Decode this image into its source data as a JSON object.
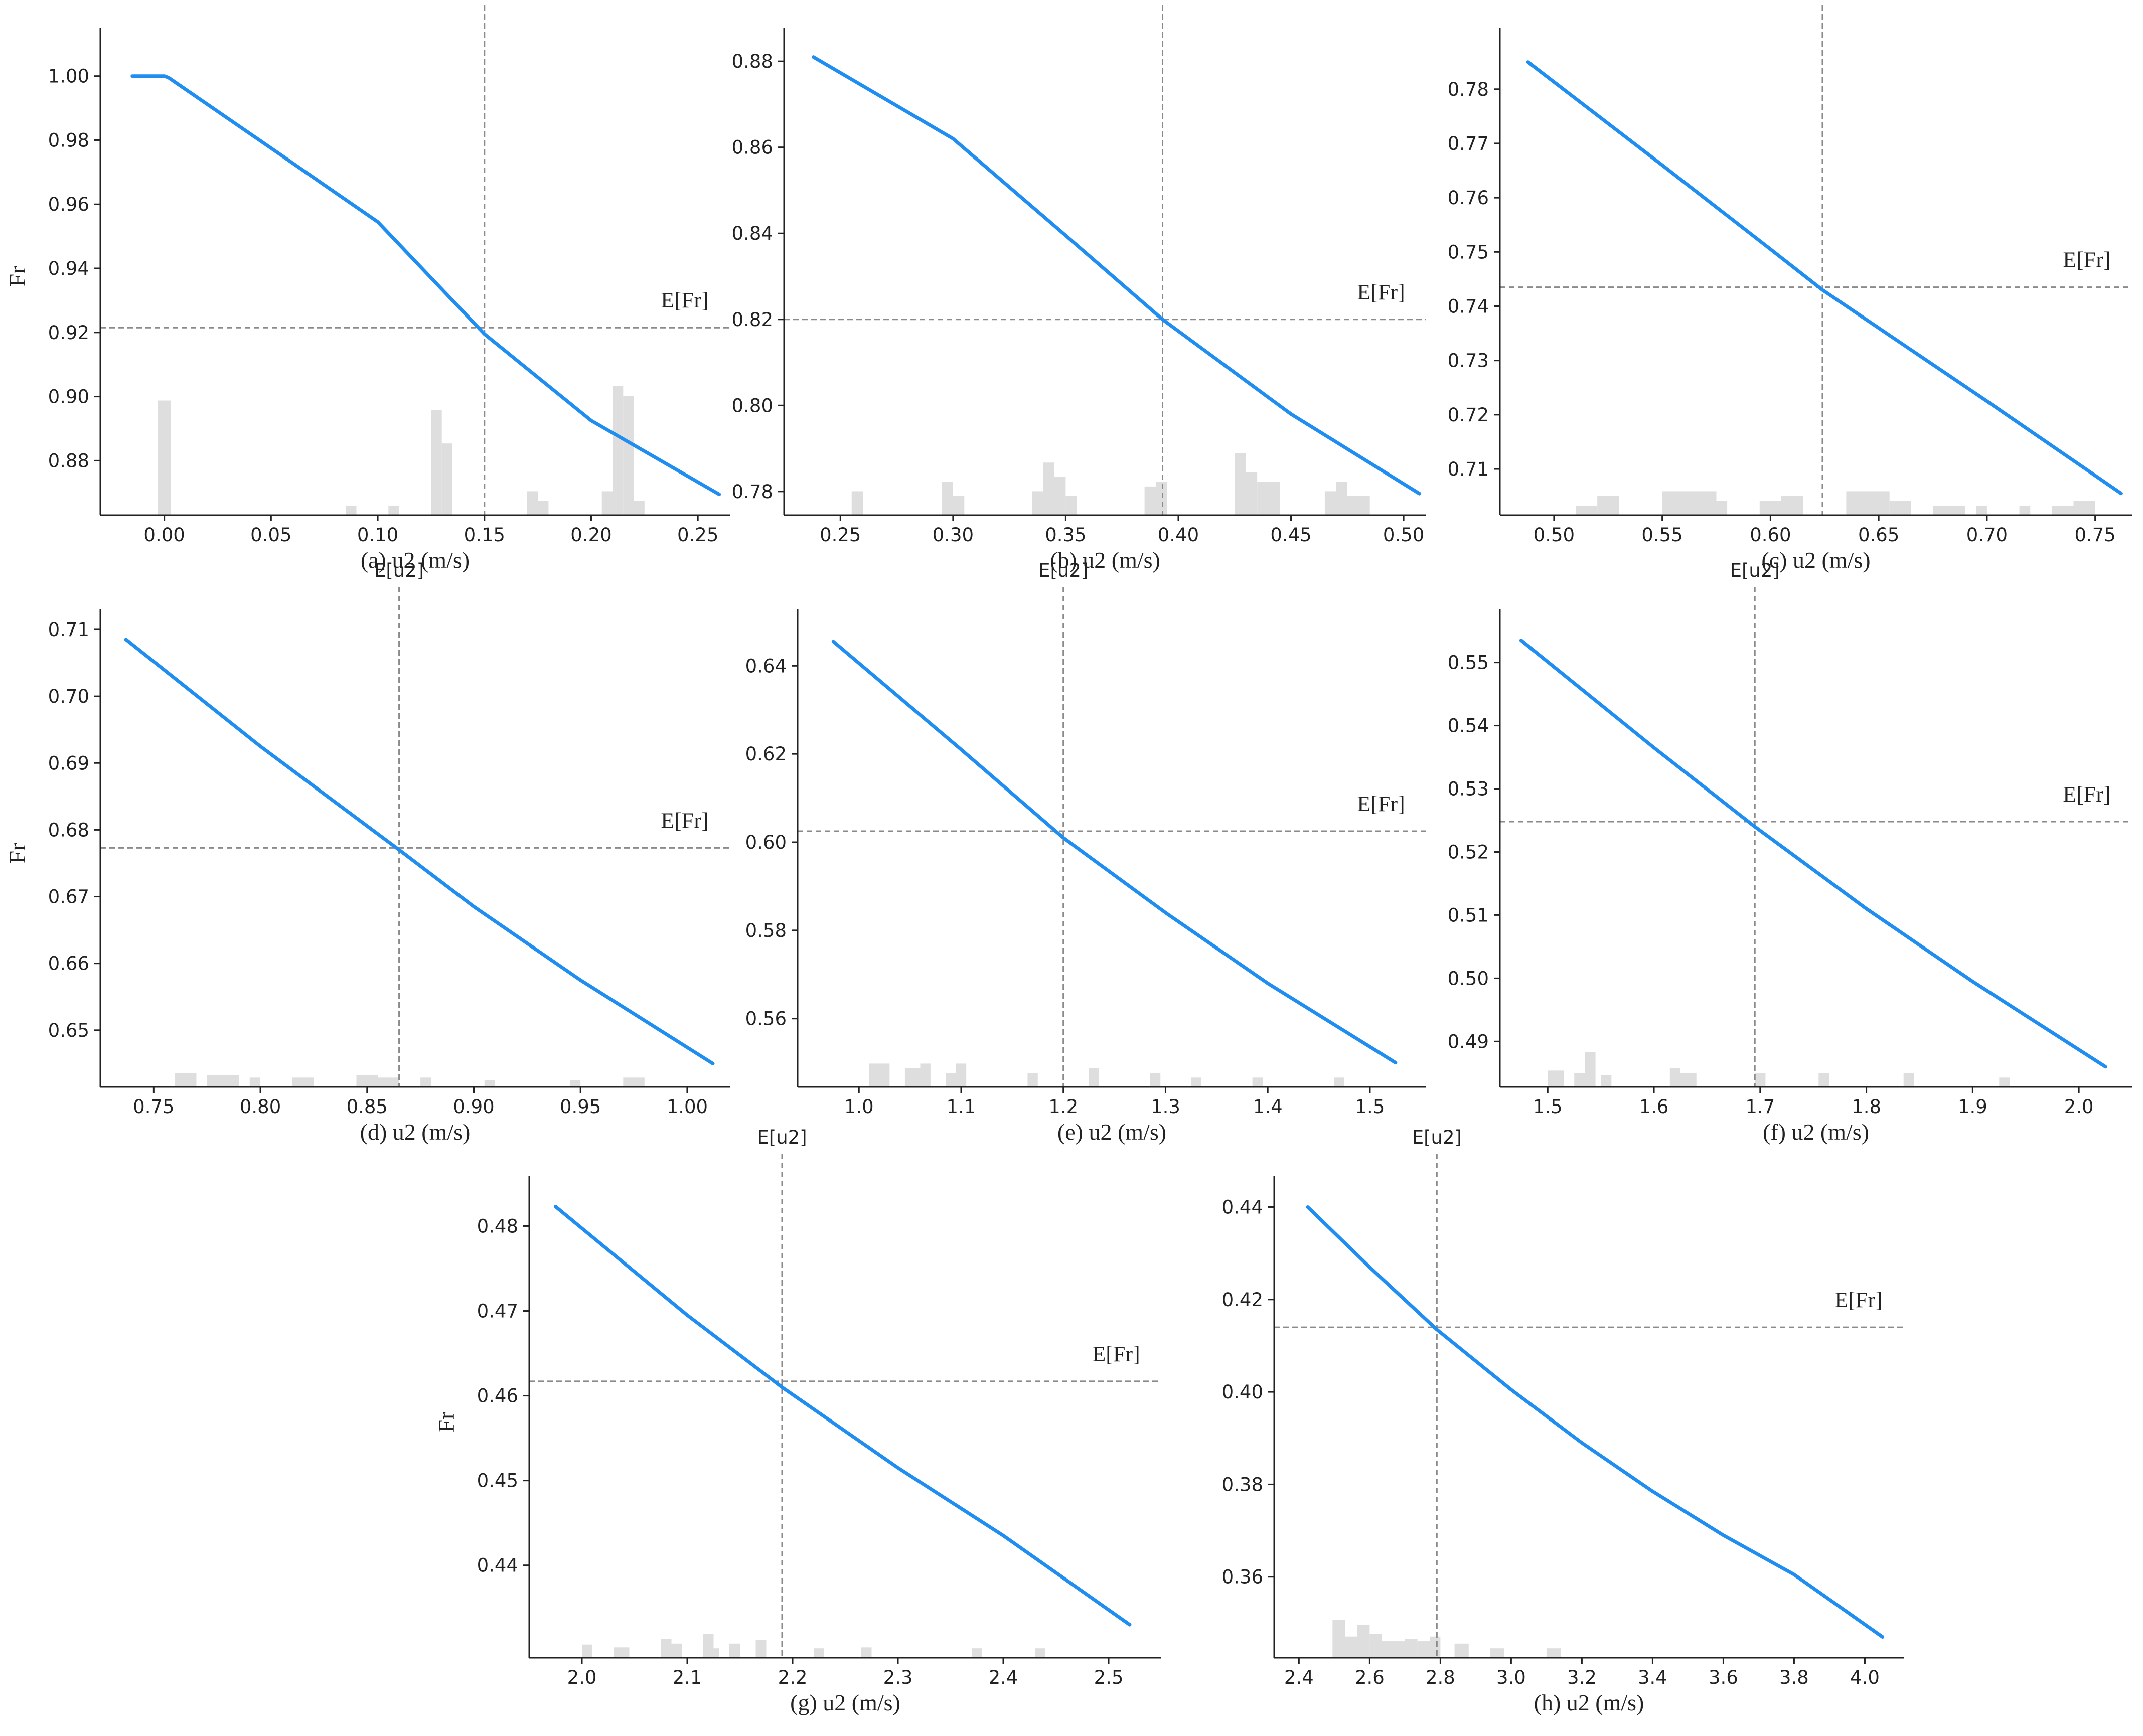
{
  "figure": {
    "background": "#ffffff",
    "curve_color": "#1f8ef0",
    "hist_color": "#dedede",
    "ref_color": "#8a8a8a"
  },
  "chart_data": [
    {
      "id": "a",
      "type": "line",
      "xlabel": "(a) u2 (m/s)",
      "ylabel": "Fr",
      "mean_x_label": "E[u2]",
      "mean_y_label": "E[Fr]",
      "xlim": [
        -0.03,
        0.265
      ],
      "ylim": [
        0.863,
        1.012
      ],
      "xticks": [
        0.0,
        0.05,
        0.1,
        0.15,
        0.2,
        0.25
      ],
      "xtick_labels": [
        "0.00",
        "0.05",
        "0.10",
        "0.15",
        "0.20",
        "0.25"
      ],
      "yticks": [
        0.88,
        0.9,
        0.92,
        0.94,
        0.96,
        0.98,
        1.0
      ],
      "ytick_labels": [
        "0.88",
        "0.90",
        "0.92",
        "0.94",
        "0.96",
        "0.98",
        "1.00"
      ],
      "mean_x": 0.15,
      "mean_y": 0.9215,
      "curve": {
        "x": [
          -0.015,
          0.0,
          0.002,
          0.05,
          0.1,
          0.15,
          0.2,
          0.26
        ],
        "y": [
          1.0,
          1.0,
          0.9995,
          0.9775,
          0.9545,
          0.9195,
          0.8925,
          0.8695
        ]
      },
      "histogram": {
        "bins": [
          [
            -0.003,
            0.003,
            0.24
          ],
          [
            0.125,
            0.13,
            0.22
          ],
          [
            0.13,
            0.135,
            0.15
          ],
          [
            0.085,
            0.09,
            0.02
          ],
          [
            0.105,
            0.11,
            0.02
          ],
          [
            0.17,
            0.175,
            0.05
          ],
          [
            0.175,
            0.18,
            0.03
          ],
          [
            0.205,
            0.21,
            0.05
          ],
          [
            0.21,
            0.215,
            0.27
          ],
          [
            0.215,
            0.22,
            0.25
          ],
          [
            0.22,
            0.225,
            0.03
          ]
        ]
      }
    },
    {
      "id": "b",
      "type": "line",
      "xlabel": "(b) u2 (m/s)",
      "ylabel": "",
      "mean_x_label": "E[u2]",
      "mean_y_label": "E[Fr]",
      "xlim": [
        0.225,
        0.51
      ],
      "ylim": [
        0.7745,
        0.8855
      ],
      "xticks": [
        0.25,
        0.3,
        0.35,
        0.4,
        0.45,
        0.5
      ],
      "xtick_labels": [
        "0.25",
        "0.30",
        "0.35",
        "0.40",
        "0.45",
        "0.50"
      ],
      "yticks": [
        0.78,
        0.8,
        0.82,
        0.84,
        0.86,
        0.88
      ],
      "ytick_labels": [
        "0.78",
        "0.80",
        "0.82",
        "0.84",
        "0.86",
        "0.88"
      ],
      "mean_x": 0.393,
      "mean_y": 0.82,
      "curve": {
        "x": [
          0.238,
          0.3,
          0.35,
          0.393,
          0.45,
          0.507
        ],
        "y": [
          0.881,
          0.862,
          0.8395,
          0.82,
          0.798,
          0.7795
        ]
      },
      "histogram": {
        "bins": [
          [
            0.255,
            0.26,
            0.05
          ],
          [
            0.295,
            0.3,
            0.07
          ],
          [
            0.3,
            0.305,
            0.04
          ],
          [
            0.335,
            0.34,
            0.05
          ],
          [
            0.34,
            0.345,
            0.11
          ],
          [
            0.345,
            0.35,
            0.08
          ],
          [
            0.35,
            0.355,
            0.04
          ],
          [
            0.385,
            0.39,
            0.06
          ],
          [
            0.39,
            0.395,
            0.07
          ],
          [
            0.425,
            0.43,
            0.13
          ],
          [
            0.43,
            0.435,
            0.09
          ],
          [
            0.435,
            0.445,
            0.07
          ],
          [
            0.465,
            0.47,
            0.05
          ],
          [
            0.47,
            0.475,
            0.07
          ],
          [
            0.475,
            0.485,
            0.04
          ]
        ]
      }
    },
    {
      "id": "c",
      "type": "line",
      "xlabel": "(c) u2 (m/s)",
      "ylabel": "",
      "mean_x_label": "E[u2]",
      "mean_y_label": "E[Fr]",
      "xlim": [
        0.475,
        0.767
      ],
      "ylim": [
        0.7015,
        0.7895
      ],
      "xticks": [
        0.5,
        0.55,
        0.6,
        0.65,
        0.7,
        0.75
      ],
      "xtick_labels": [
        "0.50",
        "0.55",
        "0.60",
        "0.65",
        "0.70",
        "0.75"
      ],
      "yticks": [
        0.71,
        0.72,
        0.73,
        0.74,
        0.75,
        0.76,
        0.77,
        0.78
      ],
      "ytick_labels": [
        "0.71",
        "0.72",
        "0.73",
        "0.74",
        "0.75",
        "0.76",
        "0.77",
        "0.78"
      ],
      "mean_x": 0.624,
      "mean_y": 0.7435,
      "curve": {
        "x": [
          0.488,
          0.55,
          0.6,
          0.624,
          0.7,
          0.762
        ],
        "y": [
          0.785,
          0.766,
          0.7505,
          0.743,
          0.7225,
          0.7055
        ]
      },
      "histogram": {
        "bins": [
          [
            0.51,
            0.52,
            0.02
          ],
          [
            0.52,
            0.53,
            0.04
          ],
          [
            0.55,
            0.575,
            0.05
          ],
          [
            0.575,
            0.58,
            0.03
          ],
          [
            0.595,
            0.605,
            0.03
          ],
          [
            0.605,
            0.615,
            0.04
          ],
          [
            0.635,
            0.645,
            0.05
          ],
          [
            0.645,
            0.655,
            0.05
          ],
          [
            0.655,
            0.665,
            0.03
          ],
          [
            0.675,
            0.69,
            0.02
          ],
          [
            0.695,
            0.7,
            0.02
          ],
          [
            0.715,
            0.72,
            0.02
          ],
          [
            0.73,
            0.74,
            0.02
          ],
          [
            0.74,
            0.75,
            0.03
          ]
        ]
      }
    },
    {
      "id": "d",
      "type": "line",
      "xlabel": "(d) u2 (m/s)",
      "ylabel": "Fr",
      "mean_x_label": "E[u2]",
      "mean_y_label": "E[Fr]",
      "xlim": [
        0.725,
        1.02
      ],
      "ylim": [
        0.6415,
        0.7115
      ],
      "xticks": [
        0.75,
        0.8,
        0.85,
        0.9,
        0.95,
        1.0
      ],
      "xtick_labels": [
        "0.75",
        "0.80",
        "0.85",
        "0.90",
        "0.95",
        "1.00"
      ],
      "yticks": [
        0.65,
        0.66,
        0.67,
        0.68,
        0.69,
        0.7,
        0.71
      ],
      "ytick_labels": [
        "0.65",
        "0.66",
        "0.67",
        "0.68",
        "0.69",
        "0.70",
        "0.71"
      ],
      "mean_x": 0.865,
      "mean_y": 0.6773,
      "curve": {
        "x": [
          0.737,
          0.8,
          0.865,
          0.9,
          0.95,
          1.012
        ],
        "y": [
          0.7085,
          0.6925,
          0.677,
          0.6685,
          0.6575,
          0.645
        ]
      },
      "histogram": {
        "bins": [
          [
            0.76,
            0.77,
            0.03
          ],
          [
            0.775,
            0.79,
            0.025
          ],
          [
            0.795,
            0.8,
            0.02
          ],
          [
            0.815,
            0.825,
            0.02
          ],
          [
            0.845,
            0.855,
            0.025
          ],
          [
            0.855,
            0.865,
            0.02
          ],
          [
            0.875,
            0.88,
            0.02
          ],
          [
            0.905,
            0.91,
            0.015
          ],
          [
            0.945,
            0.95,
            0.015
          ],
          [
            0.97,
            0.98,
            0.02
          ]
        ]
      }
    },
    {
      "id": "e",
      "type": "line",
      "xlabel": "(e) u2 (m/s)",
      "ylabel": "",
      "mean_x_label": "E[u2]",
      "mean_y_label": "E[Fr]",
      "xlim": [
        0.94,
        1.555
      ],
      "ylim": [
        0.5445,
        0.6505
      ],
      "xticks": [
        1.0,
        1.1,
        1.2,
        1.3,
        1.4,
        1.5
      ],
      "xtick_labels": [
        "1.0",
        "1.1",
        "1.2",
        "1.3",
        "1.4",
        "1.5"
      ],
      "yticks": [
        0.56,
        0.58,
        0.6,
        0.62,
        0.64
      ],
      "ytick_labels": [
        "0.56",
        "0.58",
        "0.60",
        "0.62",
        "0.64"
      ],
      "mean_x": 1.2,
      "mean_y": 0.6025,
      "curve": {
        "x": [
          0.975,
          1.1,
          1.2,
          1.3,
          1.4,
          1.525
        ],
        "y": [
          0.6455,
          0.621,
          0.601,
          0.584,
          0.568,
          0.55
        ]
      },
      "histogram": {
        "bins": [
          [
            1.01,
            1.03,
            0.05
          ],
          [
            1.045,
            1.06,
            0.04
          ],
          [
            1.06,
            1.07,
            0.05
          ],
          [
            1.085,
            1.095,
            0.03
          ],
          [
            1.095,
            1.105,
            0.05
          ],
          [
            1.165,
            1.175,
            0.03
          ],
          [
            1.225,
            1.235,
            0.04
          ],
          [
            1.285,
            1.295,
            0.03
          ],
          [
            1.325,
            1.335,
            0.02
          ],
          [
            1.385,
            1.395,
            0.02
          ],
          [
            1.465,
            1.475,
            0.02
          ]
        ]
      }
    },
    {
      "id": "f",
      "type": "line",
      "xlabel": "(f) u2 (m/s)",
      "ylabel": "",
      "mean_x_label": "E[u2]",
      "mean_y_label": "E[Fr]",
      "xlim": [
        1.455,
        2.05
      ],
      "ylim": [
        0.4828,
        0.5568
      ],
      "xticks": [
        1.5,
        1.6,
        1.7,
        1.8,
        1.9,
        2.0
      ],
      "xtick_labels": [
        "1.5",
        "1.6",
        "1.7",
        "1.8",
        "1.9",
        "2.0"
      ],
      "yticks": [
        0.49,
        0.5,
        0.51,
        0.52,
        0.53,
        0.54,
        0.55
      ],
      "ytick_labels": [
        "0.49",
        "0.50",
        "0.51",
        "0.52",
        "0.53",
        "0.54",
        "0.55"
      ],
      "mean_x": 1.695,
      "mean_y": 0.5248,
      "curve": {
        "x": [
          1.475,
          1.6,
          1.695,
          1.8,
          1.9,
          2.025
        ],
        "y": [
          0.5535,
          0.5365,
          0.524,
          0.511,
          0.4995,
          0.486
        ]
      },
      "histogram": {
        "bins": [
          [
            1.5,
            1.515,
            0.035
          ],
          [
            1.525,
            1.535,
            0.03
          ],
          [
            1.535,
            1.545,
            0.075
          ],
          [
            1.55,
            1.56,
            0.025
          ],
          [
            1.615,
            1.625,
            0.04
          ],
          [
            1.625,
            1.64,
            0.03
          ],
          [
            1.695,
            1.705,
            0.03
          ],
          [
            1.755,
            1.765,
            0.03
          ],
          [
            1.835,
            1.845,
            0.03
          ],
          [
            1.925,
            1.935,
            0.02
          ]
        ]
      }
    },
    {
      "id": "g",
      "type": "line",
      "xlabel": "(g) u2 (m/s)",
      "ylabel": "Fr",
      "mean_x_label": "E[u2]",
      "mean_y_label": "E[Fr]",
      "xlim": [
        1.95,
        2.55
      ],
      "ylim": [
        0.4291,
        0.4847
      ],
      "xticks": [
        2.0,
        2.1,
        2.2,
        2.3,
        2.4,
        2.5
      ],
      "xtick_labels": [
        "2.0",
        "2.1",
        "2.2",
        "2.3",
        "2.4",
        "2.5"
      ],
      "yticks": [
        0.44,
        0.45,
        0.46,
        0.47,
        0.48
      ],
      "ytick_labels": [
        "0.44",
        "0.45",
        "0.46",
        "0.47",
        "0.48"
      ],
      "mean_x": 2.19,
      "mean_y": 0.4617,
      "curve": {
        "x": [
          1.975,
          2.1,
          2.19,
          2.3,
          2.4,
          2.52
        ],
        "y": [
          0.4823,
          0.4695,
          0.461,
          0.4515,
          0.4435,
          0.433
        ]
      },
      "histogram": {
        "bins": [
          [
            2.0,
            2.01,
            0.028
          ],
          [
            2.03,
            2.045,
            0.022
          ],
          [
            2.075,
            2.085,
            0.04
          ],
          [
            2.085,
            2.095,
            0.03
          ],
          [
            2.115,
            2.125,
            0.05
          ],
          [
            2.125,
            2.13,
            0.02
          ],
          [
            2.14,
            2.15,
            0.03
          ],
          [
            2.165,
            2.175,
            0.038
          ],
          [
            2.22,
            2.23,
            0.02
          ],
          [
            2.265,
            2.275,
            0.022
          ],
          [
            2.37,
            2.38,
            0.02
          ],
          [
            2.43,
            2.44,
            0.02
          ]
        ]
      }
    },
    {
      "id": "h",
      "type": "line",
      "xlabel": "(h) u2 (m/s)",
      "ylabel": "",
      "mean_x_label": "E[u2]",
      "mean_y_label": "E[Fr]",
      "xlim": [
        2.33,
        4.11
      ],
      "ylim": [
        0.3425,
        0.4445
      ],
      "xticks": [
        2.4,
        2.6,
        2.8,
        3.0,
        3.2,
        3.4,
        3.6,
        3.8,
        4.0
      ],
      "xtick_labels": [
        "2.4",
        "2.6",
        "2.8",
        "3.0",
        "3.2",
        "3.4",
        "3.6",
        "3.8",
        "4.0"
      ],
      "yticks": [
        0.36,
        0.38,
        0.4,
        0.42,
        0.44
      ],
      "ytick_labels": [
        "0.36",
        "0.38",
        "0.40",
        "0.42",
        "0.44"
      ],
      "mean_x": 2.79,
      "mean_y": 0.414,
      "curve": {
        "x": [
          2.425,
          2.6,
          2.79,
          3.0,
          3.2,
          3.4,
          3.6,
          3.8,
          4.05
        ],
        "y": [
          0.44,
          0.427,
          0.4135,
          0.4005,
          0.389,
          0.3785,
          0.369,
          0.3605,
          0.347
        ]
      },
      "histogram": {
        "bins": [
          [
            2.495,
            2.53,
            0.08
          ],
          [
            2.53,
            2.565,
            0.045
          ],
          [
            2.565,
            2.6,
            0.07
          ],
          [
            2.6,
            2.635,
            0.05
          ],
          [
            2.635,
            2.7,
            0.035
          ],
          [
            2.7,
            2.735,
            0.04
          ],
          [
            2.735,
            2.77,
            0.035
          ],
          [
            2.77,
            2.8,
            0.045
          ],
          [
            2.84,
            2.88,
            0.03
          ],
          [
            2.94,
            2.98,
            0.02
          ],
          [
            3.1,
            3.14,
            0.02
          ]
        ]
      }
    }
  ]
}
